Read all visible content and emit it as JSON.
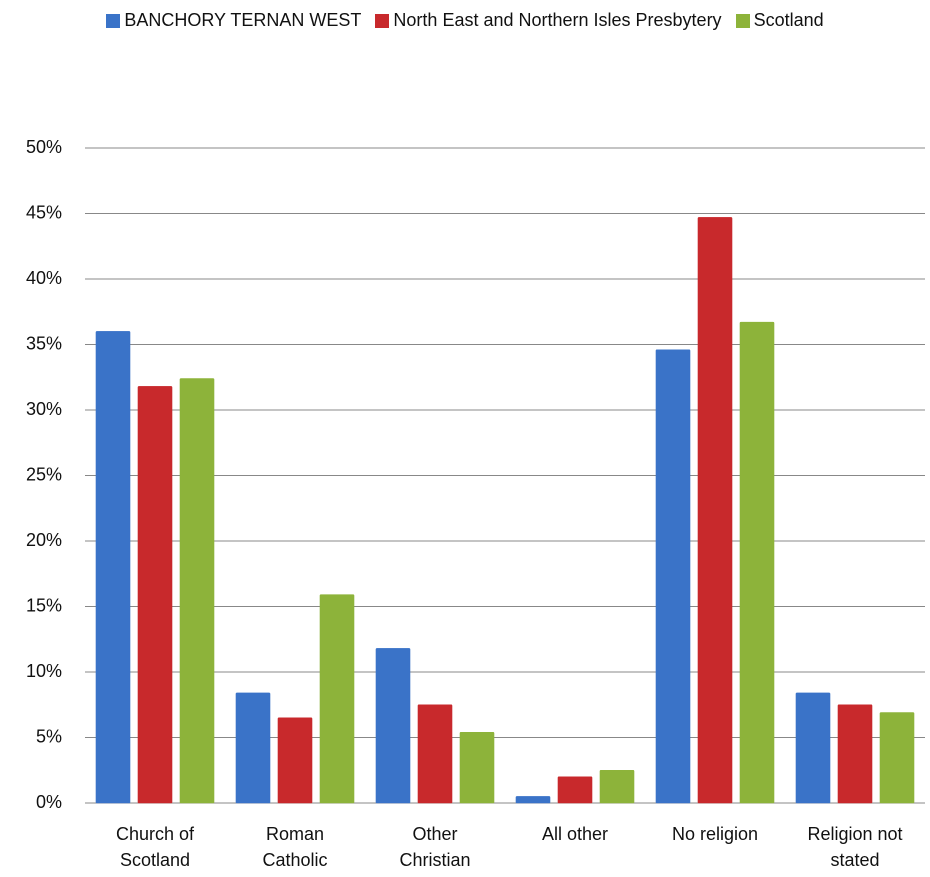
{
  "chart_data": {
    "type": "bar",
    "categories": [
      "Church of Scotland",
      "Roman Catholic",
      "Other Christian",
      "All other",
      "No religion",
      "Religion not stated"
    ],
    "series": [
      {
        "name": "BANCHORY TERNAN WEST",
        "color": "#3a73c8",
        "values": [
          36.0,
          8.4,
          11.8,
          0.5,
          34.6,
          8.4
        ]
      },
      {
        "name": "North East and Northern Isles Presbytery",
        "color": "#c8292c",
        "values": [
          31.8,
          6.5,
          7.5,
          2.0,
          44.7,
          7.5
        ]
      },
      {
        "name": "Scotland",
        "color": "#8db33a",
        "values": [
          32.4,
          15.9,
          5.4,
          2.5,
          36.7,
          6.9
        ]
      }
    ],
    "ylim": [
      0,
      50
    ],
    "yticks": [
      {
        "value": 0,
        "label": "0%"
      },
      {
        "value": 5,
        "label": "5%"
      },
      {
        "value": 10,
        "label": "10%"
      },
      {
        "value": 15,
        "label": "15%"
      },
      {
        "value": 20,
        "label": "20%"
      },
      {
        "value": 25,
        "label": "25%"
      },
      {
        "value": 30,
        "label": "30%"
      },
      {
        "value": 35,
        "label": "35%"
      },
      {
        "value": 40,
        "label": "40%"
      },
      {
        "value": 45,
        "label": "45%"
      },
      {
        "value": 50,
        "label": "50%"
      }
    ],
    "grid": true,
    "legend": "top"
  }
}
